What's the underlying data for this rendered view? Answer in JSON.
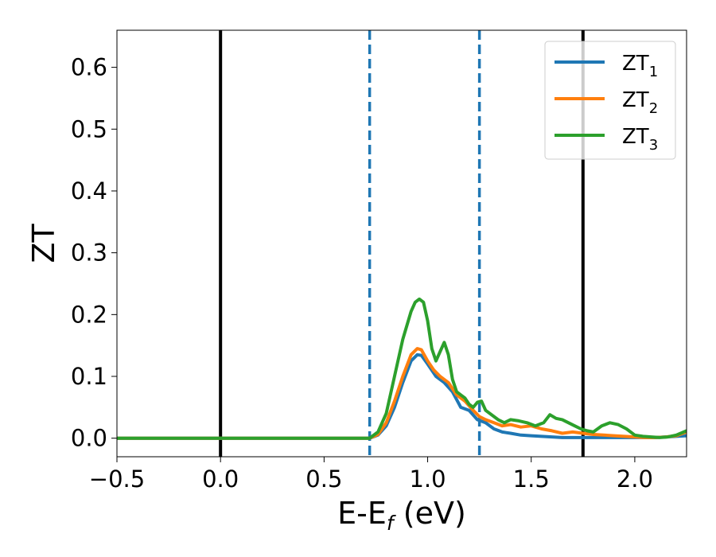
{
  "chart_data": {
    "type": "line",
    "xlabel": {
      "main": "E-E",
      "sub": "f",
      "unit": " (eV)"
    },
    "ylabel": "ZT",
    "xlim": [
      -0.5,
      2.25
    ],
    "ylim": [
      -0.03,
      0.66
    ],
    "xticks": [
      -0.5,
      0.0,
      0.5,
      1.0,
      1.5,
      2.0
    ],
    "xtick_labels": [
      "−0.5",
      "0.0",
      "0.5",
      "1.0",
      "1.5",
      "2.0"
    ],
    "yticks": [
      0.0,
      0.1,
      0.2,
      0.3,
      0.4,
      0.5,
      0.6
    ],
    "ytick_labels": [
      "0.0",
      "0.1",
      "0.2",
      "0.3",
      "0.4",
      "0.5",
      "0.6"
    ],
    "legend_position": "top-right",
    "vertical_lines": [
      {
        "x": 0.0,
        "style": "solid",
        "color": "#000000"
      },
      {
        "x": 1.75,
        "style": "solid",
        "color": "#000000"
      },
      {
        "x": 0.72,
        "style": "dashed",
        "color": "#1f77b4"
      },
      {
        "x": 1.25,
        "style": "dashed",
        "color": "#1f77b4"
      }
    ],
    "series": [
      {
        "name": "ZT",
        "name_sub": "1",
        "color": "#1f77b4",
        "x": [
          -0.5,
          0.6,
          0.68,
          0.72,
          0.76,
          0.8,
          0.84,
          0.88,
          0.92,
          0.95,
          0.97,
          1.0,
          1.04,
          1.08,
          1.12,
          1.16,
          1.2,
          1.24,
          1.28,
          1.32,
          1.36,
          1.4,
          1.45,
          1.5,
          1.55,
          1.6,
          1.65,
          1.7,
          1.75,
          1.8,
          1.85,
          1.9,
          1.95,
          2.0,
          2.05,
          2.1,
          2.15,
          2.2,
          2.25
        ],
        "y": [
          0.0,
          0.0,
          0.0,
          0.0,
          0.005,
          0.02,
          0.05,
          0.09,
          0.125,
          0.135,
          0.134,
          0.12,
          0.1,
          0.09,
          0.075,
          0.05,
          0.045,
          0.03,
          0.025,
          0.015,
          0.01,
          0.008,
          0.005,
          0.004,
          0.003,
          0.002,
          0.001,
          0.001,
          0.001,
          0.001,
          0.001,
          0.001,
          0.001,
          0.001,
          0.001,
          0.001,
          0.002,
          0.003,
          0.004
        ]
      },
      {
        "name": "ZT",
        "name_sub": "2",
        "color": "#ff7f0e",
        "x": [
          -0.5,
          0.6,
          0.68,
          0.72,
          0.76,
          0.8,
          0.84,
          0.88,
          0.92,
          0.95,
          0.97,
          1.0,
          1.03,
          1.06,
          1.1,
          1.14,
          1.18,
          1.22,
          1.25,
          1.28,
          1.32,
          1.36,
          1.4,
          1.45,
          1.5,
          1.55,
          1.6,
          1.65,
          1.7,
          1.75,
          1.8,
          1.85,
          1.9,
          1.95,
          2.0,
          2.05,
          2.1,
          2.15,
          2.2,
          2.25
        ],
        "y": [
          0.0,
          0.0,
          0.0,
          0.0,
          0.006,
          0.025,
          0.06,
          0.1,
          0.135,
          0.145,
          0.143,
          0.125,
          0.11,
          0.1,
          0.09,
          0.07,
          0.06,
          0.045,
          0.035,
          0.03,
          0.025,
          0.02,
          0.022,
          0.018,
          0.02,
          0.015,
          0.012,
          0.008,
          0.01,
          0.008,
          0.006,
          0.005,
          0.004,
          0.003,
          0.002,
          0.001,
          0.001,
          0.002,
          0.004,
          0.01
        ]
      },
      {
        "name": "ZT",
        "name_sub": "3",
        "color": "#2ca02c",
        "x": [
          -0.5,
          0.6,
          0.68,
          0.72,
          0.76,
          0.8,
          0.84,
          0.88,
          0.92,
          0.94,
          0.96,
          0.98,
          1.0,
          1.02,
          1.04,
          1.06,
          1.08,
          1.1,
          1.12,
          1.14,
          1.16,
          1.18,
          1.2,
          1.22,
          1.24,
          1.26,
          1.28,
          1.3,
          1.32,
          1.34,
          1.37,
          1.4,
          1.44,
          1.48,
          1.52,
          1.56,
          1.59,
          1.62,
          1.65,
          1.68,
          1.71,
          1.74,
          1.77,
          1.8,
          1.84,
          1.88,
          1.92,
          1.96,
          2.0,
          2.04,
          2.08,
          2.12,
          2.16,
          2.2,
          2.25
        ],
        "y": [
          0.0,
          0.0,
          0.0,
          0.0,
          0.01,
          0.04,
          0.1,
          0.16,
          0.205,
          0.22,
          0.225,
          0.22,
          0.19,
          0.145,
          0.125,
          0.14,
          0.155,
          0.135,
          0.095,
          0.075,
          0.07,
          0.065,
          0.055,
          0.05,
          0.058,
          0.06,
          0.045,
          0.04,
          0.035,
          0.03,
          0.025,
          0.03,
          0.028,
          0.025,
          0.02,
          0.025,
          0.038,
          0.032,
          0.03,
          0.025,
          0.02,
          0.015,
          0.012,
          0.01,
          0.02,
          0.025,
          0.022,
          0.015,
          0.005,
          0.003,
          0.002,
          0.001,
          0.002,
          0.005,
          0.012
        ]
      }
    ]
  }
}
